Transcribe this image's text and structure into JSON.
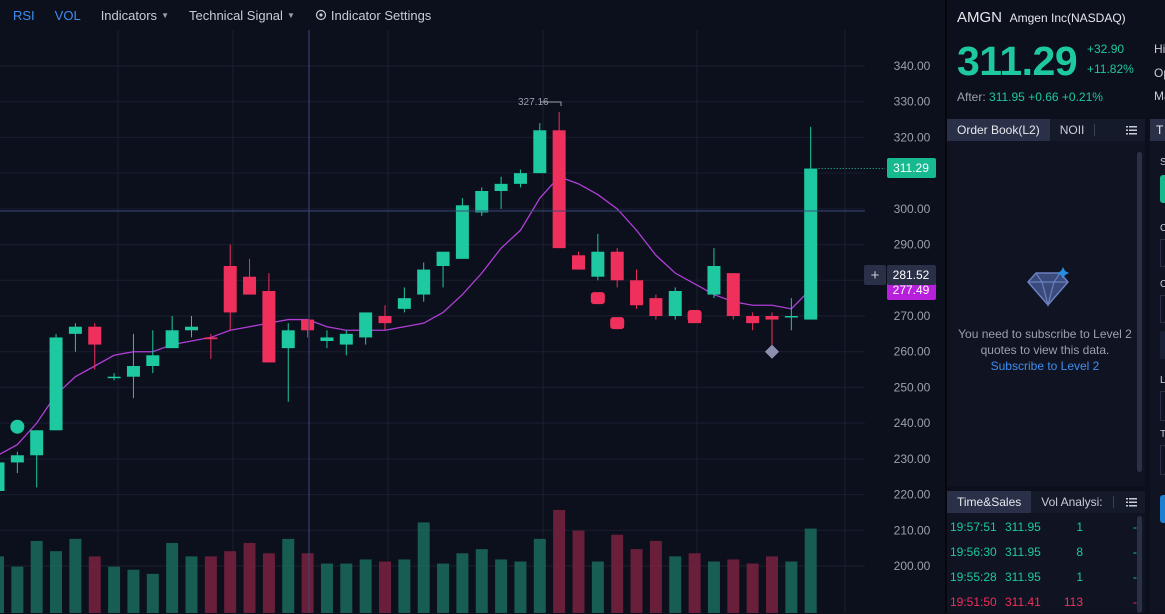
{
  "toolbar": {
    "rsi": "RSI",
    "vol": "VOL",
    "indicators": "Indicators",
    "technical_signal": "Technical Signal",
    "indicator_settings": "Indicator Settings"
  },
  "chart": {
    "y_ticks": [
      "340.00",
      "330.00",
      "320.00",
      "310.00",
      "300.00",
      "290.00",
      "280.00",
      "270.00",
      "260.00",
      "250.00",
      "240.00",
      "230.00",
      "220.00",
      "210.00",
      "200.00"
    ],
    "high_marker_label": "327.16",
    "last_price_label": "311.29",
    "crosshair_label": "281.52",
    "ma_label": "277.49",
    "colors": {
      "up": "#1ec8a0",
      "down": "#f0305c",
      "ma": "#b03fd8",
      "last_tag": "#17b98f",
      "ma_tag": "#b71fdc",
      "crosshair_tag": "#2a3048"
    }
  },
  "chart_data": {
    "type": "candlestick",
    "ylim": [
      195,
      345
    ],
    "candles": [
      {
        "o": 221,
        "h": 232,
        "l": 220,
        "c": 229
      },
      {
        "o": 229,
        "h": 232,
        "l": 226,
        "c": 231
      },
      {
        "o": 231,
        "h": 238,
        "l": 222,
        "c": 238
      },
      {
        "o": 238,
        "h": 265,
        "l": 238,
        "c": 264
      },
      {
        "o": 265,
        "h": 268,
        "l": 260,
        "c": 267
      },
      {
        "o": 267,
        "h": 268,
        "l": 255,
        "c": 262
      },
      {
        "o": 253,
        "h": 254,
        "l": 252,
        "c": 253
      },
      {
        "o": 253,
        "h": 265,
        "l": 247,
        "c": 256
      },
      {
        "o": 256,
        "h": 266,
        "l": 254,
        "c": 259
      },
      {
        "o": 261,
        "h": 270,
        "l": 261,
        "c": 266
      },
      {
        "o": 266,
        "h": 270,
        "l": 264,
        "c": 267
      },
      {
        "o": 264,
        "h": 265,
        "l": 258,
        "c": 263.5
      },
      {
        "o": 284,
        "h": 290,
        "l": 266,
        "c": 271
      },
      {
        "o": 281,
        "h": 286,
        "l": 276,
        "c": 276
      },
      {
        "o": 277,
        "h": 282,
        "l": 257,
        "c": 257
      },
      {
        "o": 261,
        "h": 268,
        "l": 246,
        "c": 266
      },
      {
        "o": 269,
        "h": 269,
        "l": 264,
        "c": 266
      },
      {
        "o": 263,
        "h": 266,
        "l": 261,
        "c": 264
      },
      {
        "o": 262,
        "h": 266,
        "l": 259,
        "c": 265
      },
      {
        "o": 264,
        "h": 271,
        "l": 262,
        "c": 271
      },
      {
        "o": 270,
        "h": 273,
        "l": 266,
        "c": 268
      },
      {
        "o": 272,
        "h": 278,
        "l": 271,
        "c": 275
      },
      {
        "o": 276,
        "h": 285,
        "l": 274,
        "c": 283
      },
      {
        "o": 284,
        "h": 288,
        "l": 278,
        "c": 288
      },
      {
        "o": 286,
        "h": 303,
        "l": 286,
        "c": 301
      },
      {
        "o": 299,
        "h": 306,
        "l": 298,
        "c": 305
      },
      {
        "o": 305,
        "h": 309,
        "l": 300,
        "c": 307
      },
      {
        "o": 307,
        "h": 311,
        "l": 306,
        "c": 310
      },
      {
        "o": 310,
        "h": 324,
        "l": 310,
        "c": 322
      },
      {
        "o": 322,
        "h": 327.16,
        "l": 289,
        "c": 289
      },
      {
        "o": 287,
        "h": 288,
        "l": 283,
        "c": 283
      },
      {
        "o": 281,
        "h": 293,
        "l": 280,
        "c": 288
      },
      {
        "o": 288,
        "h": 289,
        "l": 278,
        "c": 280
      },
      {
        "o": 280,
        "h": 283,
        "l": 272,
        "c": 273
      },
      {
        "o": 275,
        "h": 276,
        "l": 269,
        "c": 270
      },
      {
        "o": 270,
        "h": 278,
        "l": 269,
        "c": 277
      },
      {
        "o": 271,
        "h": 271,
        "l": 268,
        "c": 268
      },
      {
        "o": 276,
        "h": 289,
        "l": 275,
        "c": 284
      },
      {
        "o": 282,
        "h": 282,
        "l": 269,
        "c": 270
      },
      {
        "o": 270,
        "h": 271,
        "l": 266,
        "c": 268
      },
      {
        "o": 270,
        "h": 271,
        "l": 260,
        "c": 269
      },
      {
        "o": 270,
        "h": 275,
        "l": 266,
        "c": 270
      },
      {
        "o": 269,
        "h": 323,
        "l": 269,
        "c": 311.29
      }
    ],
    "ma": [
      231,
      234,
      240,
      248,
      253,
      256,
      259,
      260,
      260,
      262,
      263,
      264,
      266,
      267,
      268,
      269,
      269,
      267,
      266,
      266,
      266,
      267,
      268,
      271,
      276,
      282,
      289,
      294,
      303,
      309,
      307,
      304,
      300,
      294,
      287,
      282,
      279,
      276,
      274,
      273,
      273,
      272,
      277.49
    ],
    "volume": [
      0.55,
      0.45,
      0.7,
      0.6,
      0.72,
      0.55,
      0.45,
      0.42,
      0.38,
      0.68,
      0.55,
      0.55,
      0.6,
      0.68,
      0.58,
      0.72,
      0.58,
      0.48,
      0.48,
      0.52,
      0.5,
      0.52,
      0.88,
      0.48,
      0.58,
      0.62,
      0.52,
      0.5,
      0.72,
      1.0,
      0.8,
      0.5,
      0.76,
      0.62,
      0.7,
      0.55,
      0.58,
      0.5,
      0.52,
      0.48,
      0.55,
      0.5,
      0.82
    ],
    "markers": [
      {
        "index": 1,
        "price": 239,
        "shape": "circle",
        "color": "#1ec8a0"
      },
      {
        "index": 31,
        "price": 275,
        "shape": "roundrect",
        "color": "#f0305c"
      },
      {
        "index": 32,
        "price": 268,
        "shape": "roundrect",
        "color": "#f0305c"
      },
      {
        "index": 36,
        "price": 270,
        "shape": "roundrect",
        "color": "#f0305c"
      },
      {
        "index": 40,
        "price": 260,
        "shape": "diamond",
        "color": "#8c8fb0"
      }
    ]
  },
  "quote": {
    "symbol": "AMGN",
    "name": "Amgen Inc(NASDAQ)",
    "price": "311.29",
    "change_abs": "+32.90",
    "change_pct": "+11.82%",
    "after_label": "After:",
    "after_price": "311.95",
    "after_change": "+0.66",
    "after_pct": "+0.21%",
    "side_labels": [
      "Hi",
      "Op",
      "Ma"
    ]
  },
  "order_book": {
    "tabs": [
      "Order Book(L2)",
      "NOII"
    ],
    "message_line1": "You need to subscribe to Level 2",
    "message_line2": "quotes to view this data.",
    "subscribe_link": "Subscribe to Level 2"
  },
  "time_sales": {
    "tabs": [
      "Time&Sales",
      "Vol Analysi:"
    ],
    "rows": [
      {
        "time": "19:57:51",
        "price": "311.95",
        "vol": "1",
        "dir": "--",
        "color": "up"
      },
      {
        "time": "19:56:30",
        "price": "311.95",
        "vol": "8",
        "dir": "--",
        "color": "up"
      },
      {
        "time": "19:55:28",
        "price": "311.95",
        "vol": "1",
        "dir": "--",
        "color": "up"
      },
      {
        "time": "19:51:50",
        "price": "311.41",
        "vol": "113",
        "dir": "--",
        "color": "down"
      }
    ]
  },
  "far_panel": {
    "tab_letter": "T",
    "labels": [
      "S",
      "C",
      "C",
      "L",
      "T"
    ]
  }
}
